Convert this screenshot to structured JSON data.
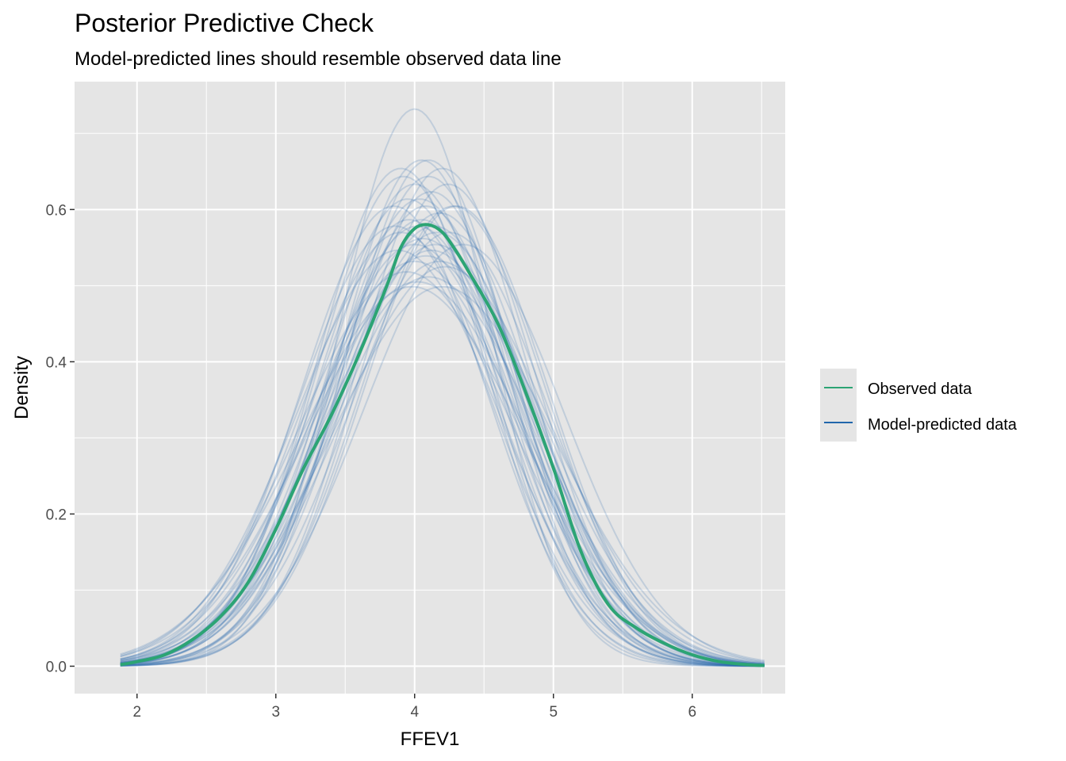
{
  "chart_data": {
    "type": "line",
    "title": "Posterior Predictive Check",
    "subtitle": "Model-predicted lines should resemble observed data line",
    "xlabel": "FFEV1",
    "ylabel": "Density",
    "xlim": [
      1.55,
      6.67
    ],
    "ylim": [
      -0.036,
      0.768
    ],
    "x_ticks": [
      2,
      3,
      4,
      5,
      6
    ],
    "x_tick_labels": [
      "2",
      "3",
      "4",
      "5",
      "6"
    ],
    "y_ticks": [
      0.0,
      0.2,
      0.4,
      0.6
    ],
    "y_tick_labels": [
      "0.0",
      "0.2",
      "0.4",
      "0.6"
    ],
    "grid": true,
    "legend_position": "right",
    "legend": [
      {
        "label": "Observed data",
        "color": "#2ca474"
      },
      {
        "label": "Model-predicted data",
        "color": "#2166ac"
      }
    ],
    "colors": {
      "panel_background": "#e5e5e5",
      "grid": "#ffffff",
      "observed": "#2ca474",
      "predicted": "#2166ac"
    },
    "observed_series": {
      "name": "Observed data",
      "x": [
        1.88,
        2.0,
        2.2,
        2.4,
        2.6,
        2.8,
        3.0,
        3.2,
        3.4,
        3.6,
        3.8,
        3.9,
        4.0,
        4.1,
        4.2,
        4.3,
        4.4,
        4.6,
        4.8,
        5.0,
        5.2,
        5.4,
        5.6,
        5.8,
        6.0,
        6.2,
        6.4,
        6.52
      ],
      "y": [
        0.002,
        0.006,
        0.015,
        0.035,
        0.065,
        0.11,
        0.18,
        0.26,
        0.33,
        0.41,
        0.5,
        0.55,
        0.575,
        0.58,
        0.57,
        0.545,
        0.515,
        0.45,
        0.36,
        0.26,
        0.15,
        0.08,
        0.05,
        0.03,
        0.015,
        0.006,
        0.002,
        0.001
      ]
    },
    "predicted_series": [
      {
        "mean": 4.0,
        "sd": 0.545
      },
      {
        "mean": 4.05,
        "sd": 0.6
      },
      {
        "mean": 4.1,
        "sd": 0.62
      },
      {
        "mean": 4.2,
        "sd": 0.61
      },
      {
        "mean": 3.95,
        "sd": 0.65
      },
      {
        "mean": 4.3,
        "sd": 0.66
      },
      {
        "mean": 3.9,
        "sd": 0.7
      },
      {
        "mean": 4.0,
        "sd": 0.75
      },
      {
        "mean": 4.15,
        "sd": 0.72
      },
      {
        "mean": 4.05,
        "sd": 0.68
      },
      {
        "mean": 3.85,
        "sd": 0.66
      },
      {
        "mean": 4.25,
        "sd": 0.7
      },
      {
        "mean": 4.1,
        "sd": 0.78
      },
      {
        "mean": 3.98,
        "sd": 0.8
      },
      {
        "mean": 4.12,
        "sd": 0.64
      },
      {
        "mean": 4.02,
        "sd": 0.69
      },
      {
        "mean": 4.18,
        "sd": 0.67
      },
      {
        "mean": 3.92,
        "sd": 0.62
      },
      {
        "mean": 4.08,
        "sd": 0.74
      },
      {
        "mean": 4.22,
        "sd": 0.76
      },
      {
        "mean": 3.88,
        "sd": 0.73
      },
      {
        "mean": 4.35,
        "sd": 0.72
      },
      {
        "mean": 4.0,
        "sd": 0.63
      },
      {
        "mean": 4.06,
        "sd": 0.71
      },
      {
        "mean": 4.14,
        "sd": 0.69
      },
      {
        "mean": 3.96,
        "sd": 0.68
      },
      {
        "mean": 4.28,
        "sd": 0.66
      },
      {
        "mean": 4.1,
        "sd": 0.6
      },
      {
        "mean": 3.94,
        "sd": 0.77
      },
      {
        "mean": 4.04,
        "sd": 0.65
      },
      {
        "mean": 4.2,
        "sd": 0.8
      },
      {
        "mean": 4.12,
        "sd": 0.73
      },
      {
        "mean": 3.9,
        "sd": 0.61
      },
      {
        "mean": 4.16,
        "sd": 0.7
      },
      {
        "mean": 4.02,
        "sd": 0.79
      },
      {
        "mean": 4.24,
        "sd": 0.63
      },
      {
        "mean": 4.08,
        "sd": 0.66
      },
      {
        "mean": 3.86,
        "sd": 0.69
      },
      {
        "mean": 4.18,
        "sd": 0.75
      },
      {
        "mean": 4.0,
        "sd": 0.72
      }
    ]
  }
}
